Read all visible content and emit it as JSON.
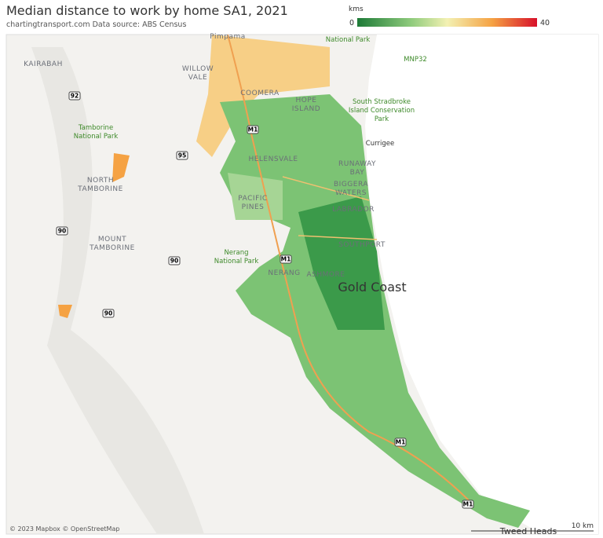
{
  "header": {
    "title": "Median distance to work by home SA1, 2021",
    "subtitle": "chartingtransport.com  Data source: ABS Census"
  },
  "legend": {
    "title": "kms",
    "min": 0,
    "max": 40
  },
  "map": {
    "places": [
      {
        "lines": [
          "KAIRABAH"
        ]
      },
      {
        "lines": [
          "WILLOW",
          "VALE"
        ]
      },
      {
        "lines": [
          "COOMERA"
        ]
      },
      {
        "lines": [
          "HOPE",
          "ISLAND"
        ]
      },
      {
        "lines": [
          "Tamborine",
          "National Park"
        ]
      },
      {
        "lines": [
          "NORTH",
          "TAMBORINE"
        ]
      },
      {
        "lines": [
          "MOUNT",
          "TAMBORINE"
        ]
      },
      {
        "lines": [
          "Nerang",
          "National Park"
        ]
      },
      {
        "lines": [
          "South Stradbroke",
          "Island Conservation",
          "Park"
        ]
      },
      {
        "lines": [
          "Currigee"
        ]
      },
      {
        "lines": [
          "MNP32"
        ]
      },
      {
        "lines": [
          "National Park"
        ]
      },
      {
        "lines": [
          "HELENSVALE"
        ]
      },
      {
        "lines": [
          "RUNAWAY",
          "BAY"
        ]
      },
      {
        "lines": [
          "BIGGERA",
          "WATERS"
        ]
      },
      {
        "lines": [
          "PACIFIC",
          "PINES"
        ]
      },
      {
        "lines": [
          "LABRADOR"
        ]
      },
      {
        "lines": [
          "SOUTHPORT"
        ]
      },
      {
        "lines": [
          "NERANG"
        ]
      },
      {
        "lines": [
          "ASHMORE"
        ]
      },
      {
        "lines": [
          "Gold Coast"
        ]
      },
      {
        "lines": [
          "Tweed Heads"
        ]
      },
      {
        "lines": [
          "Pimpama"
        ]
      }
    ],
    "roads": [
      "92",
      "95",
      "90",
      "90",
      "90",
      "M1",
      "M1",
      "M1",
      "M1"
    ],
    "attribution": "© 2023 Mapbox © OpenStreetMap",
    "scale": "10 km"
  }
}
